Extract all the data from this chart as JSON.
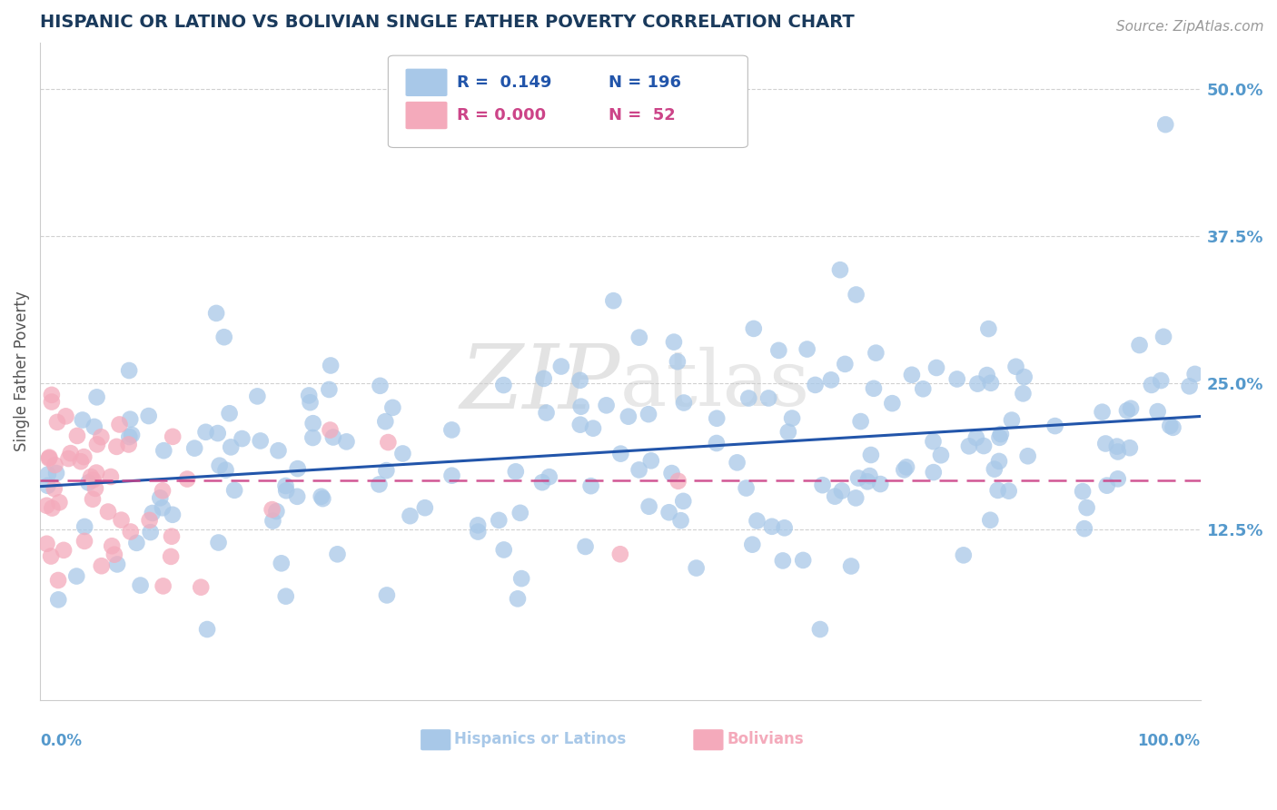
{
  "title": "HISPANIC OR LATINO VS BOLIVIAN SINGLE FATHER POVERTY CORRELATION CHART",
  "source": "Source: ZipAtlas.com",
  "ylabel": "Single Father Poverty",
  "ytick_vals": [
    0.125,
    0.25,
    0.375,
    0.5
  ],
  "ytick_labels": [
    "12.5%",
    "25.0%",
    "37.5%",
    "50.0%"
  ],
  "xlim": [
    0.0,
    1.0
  ],
  "ylim": [
    -0.02,
    0.54
  ],
  "blue_color": "#A8C8E8",
  "pink_color": "#F4AABB",
  "blue_line_color": "#2255AA",
  "pink_line_color": "#CC4488",
  "title_color": "#1A3A5C",
  "source_color": "#999999",
  "tick_label_color": "#5599CC",
  "axis_color": "#CCCCCC",
  "background_color": "#FFFFFF",
  "watermark_color": "#CCCCCC",
  "legend_r1": "R =  0.149",
  "legend_n1": "N = 196",
  "legend_r2": "R = 0.000",
  "legend_n2": "N =  52"
}
